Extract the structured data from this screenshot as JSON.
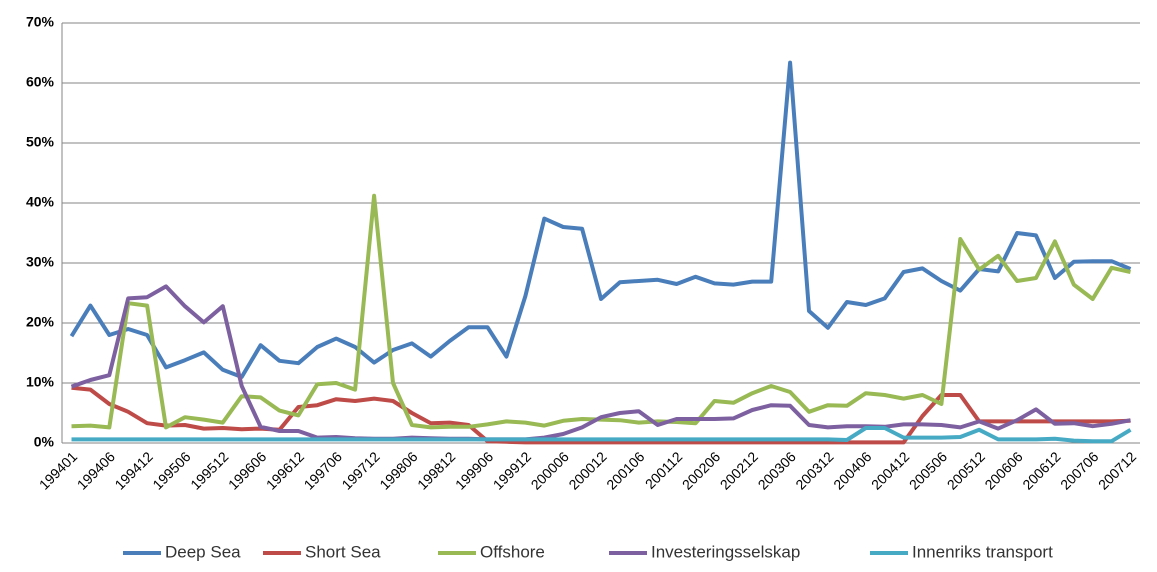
{
  "chart_data": {
    "type": "line",
    "categories": [
      "199401",
      null,
      "199406",
      null,
      "199412",
      null,
      "199506",
      null,
      "199512",
      null,
      "199606",
      null,
      "199612",
      null,
      "199706",
      null,
      "199712",
      null,
      "199806",
      null,
      "199812",
      null,
      "199906",
      null,
      "199912",
      null,
      "200006",
      null,
      "200012",
      null,
      "200106",
      null,
      "200112",
      null,
      "200206",
      null,
      "200212",
      null,
      "200306",
      null,
      "200312",
      null,
      "200406",
      null,
      "200412",
      null,
      "200506",
      null,
      "200512",
      null,
      "200606",
      null,
      "200612",
      null,
      "200706",
      null,
      "200712"
    ],
    "series": [
      {
        "name": "Deep Sea",
        "color": "#4a7ebb",
        "values": [
          17.8,
          22.9,
          18.0,
          19.0,
          18.0,
          12.6,
          13.8,
          15.1,
          12.2,
          11.0,
          16.3,
          13.7,
          13.3,
          16.0,
          17.4,
          16.0,
          13.4,
          15.5,
          16.6,
          14.4,
          17.0,
          19.3,
          19.3,
          14.4,
          24.5,
          37.4,
          36.0,
          35.7,
          24.0,
          26.8,
          27.0,
          27.2,
          26.5,
          27.7,
          26.6,
          26.4,
          26.9,
          26.9,
          63.4,
          22.0,
          19.2,
          23.5,
          23.0,
          24.1,
          28.5,
          29.1,
          27.0,
          25.4,
          29.0,
          28.6,
          35.0,
          34.6,
          27.5,
          30.2,
          30.3,
          30.3,
          29.0
        ]
      },
      {
        "name": "Short Sea",
        "color": "#be4b48",
        "values": [
          9.2,
          8.9,
          6.5,
          5.2,
          3.3,
          2.9,
          3.0,
          2.4,
          2.5,
          2.3,
          2.4,
          2.2,
          6.0,
          6.3,
          7.3,
          7.0,
          7.4,
          7.0,
          5.0,
          3.3,
          3.4,
          3.0,
          0.3,
          0.2,
          0.1,
          0.1,
          0.1,
          0.1,
          0.1,
          0.1,
          0.1,
          0.1,
          0.1,
          0.1,
          0.1,
          0.1,
          0.1,
          0.1,
          0.1,
          0.1,
          0.1,
          0.1,
          0.1,
          0.1,
          0.1,
          4.5,
          8.0,
          8.0,
          3.6,
          3.6,
          3.6,
          3.6,
          3.6,
          3.6,
          3.6,
          3.6,
          3.7
        ]
      },
      {
        "name": "Offshore",
        "color": "#98b954",
        "values": [
          2.8,
          2.9,
          2.6,
          23.3,
          22.9,
          2.6,
          4.3,
          3.9,
          3.4,
          7.8,
          7.6,
          5.4,
          4.6,
          9.8,
          10.0,
          8.9,
          41.2,
          10.0,
          3.0,
          2.6,
          2.7,
          2.7,
          3.1,
          3.6,
          3.4,
          2.9,
          3.7,
          4.0,
          3.9,
          3.8,
          3.4,
          3.6,
          3.5,
          3.3,
          7.0,
          6.7,
          8.3,
          9.5,
          8.5,
          5.2,
          6.3,
          6.2,
          8.3,
          8.0,
          7.4,
          8.0,
          6.5,
          34.0,
          28.9,
          31.2,
          27.0,
          27.5,
          33.6,
          26.4,
          24.0,
          29.2,
          28.5
        ]
      },
      {
        "name": "Investeringsselskap",
        "color": "#7d60a0",
        "values": [
          9.4,
          10.5,
          11.3,
          24.1,
          24.3,
          26.1,
          22.8,
          20.1,
          22.8,
          9.5,
          2.7,
          2.0,
          2.0,
          0.9,
          1.0,
          0.8,
          0.7,
          0.7,
          0.9,
          0.8,
          0.7,
          0.7,
          0.6,
          0.6,
          0.6,
          0.9,
          1.5,
          2.6,
          4.3,
          5.0,
          5.3,
          3.0,
          4.0,
          4.0,
          4.0,
          4.1,
          5.5,
          6.3,
          6.2,
          3.0,
          2.6,
          2.8,
          2.8,
          2.7,
          3.1,
          3.1,
          3.0,
          2.6,
          3.6,
          2.4,
          3.8,
          5.6,
          3.2,
          3.3,
          2.8,
          3.2,
          3.8
        ]
      },
      {
        "name": "Innenriks transport",
        "color": "#46aac5",
        "values": [
          0.6,
          0.6,
          0.6,
          0.6,
          0.6,
          0.6,
          0.6,
          0.6,
          0.6,
          0.6,
          0.6,
          0.6,
          0.6,
          0.6,
          0.6,
          0.6,
          0.6,
          0.6,
          0.6,
          0.6,
          0.6,
          0.6,
          0.6,
          0.6,
          0.6,
          0.6,
          0.6,
          0.6,
          0.6,
          0.6,
          0.6,
          0.6,
          0.6,
          0.6,
          0.6,
          0.6,
          0.6,
          0.6,
          0.6,
          0.6,
          0.6,
          0.5,
          2.5,
          2.5,
          0.9,
          0.9,
          0.9,
          1.0,
          2.2,
          0.6,
          0.6,
          0.6,
          0.7,
          0.4,
          0.3,
          0.3,
          2.2
        ]
      }
    ],
    "ylim": [
      0,
      70
    ],
    "yticks": [
      {
        "value": 0,
        "label": "0%"
      },
      {
        "value": 10,
        "label": "10%"
      },
      {
        "value": 20,
        "label": "20%"
      },
      {
        "value": 30,
        "label": "30%"
      },
      {
        "value": 40,
        "label": "40%"
      },
      {
        "value": 50,
        "label": "50%"
      },
      {
        "value": 60,
        "label": "60%"
      },
      {
        "value": 70,
        "label": "70%"
      }
    ],
    "grid": true,
    "legend": "bottom"
  }
}
